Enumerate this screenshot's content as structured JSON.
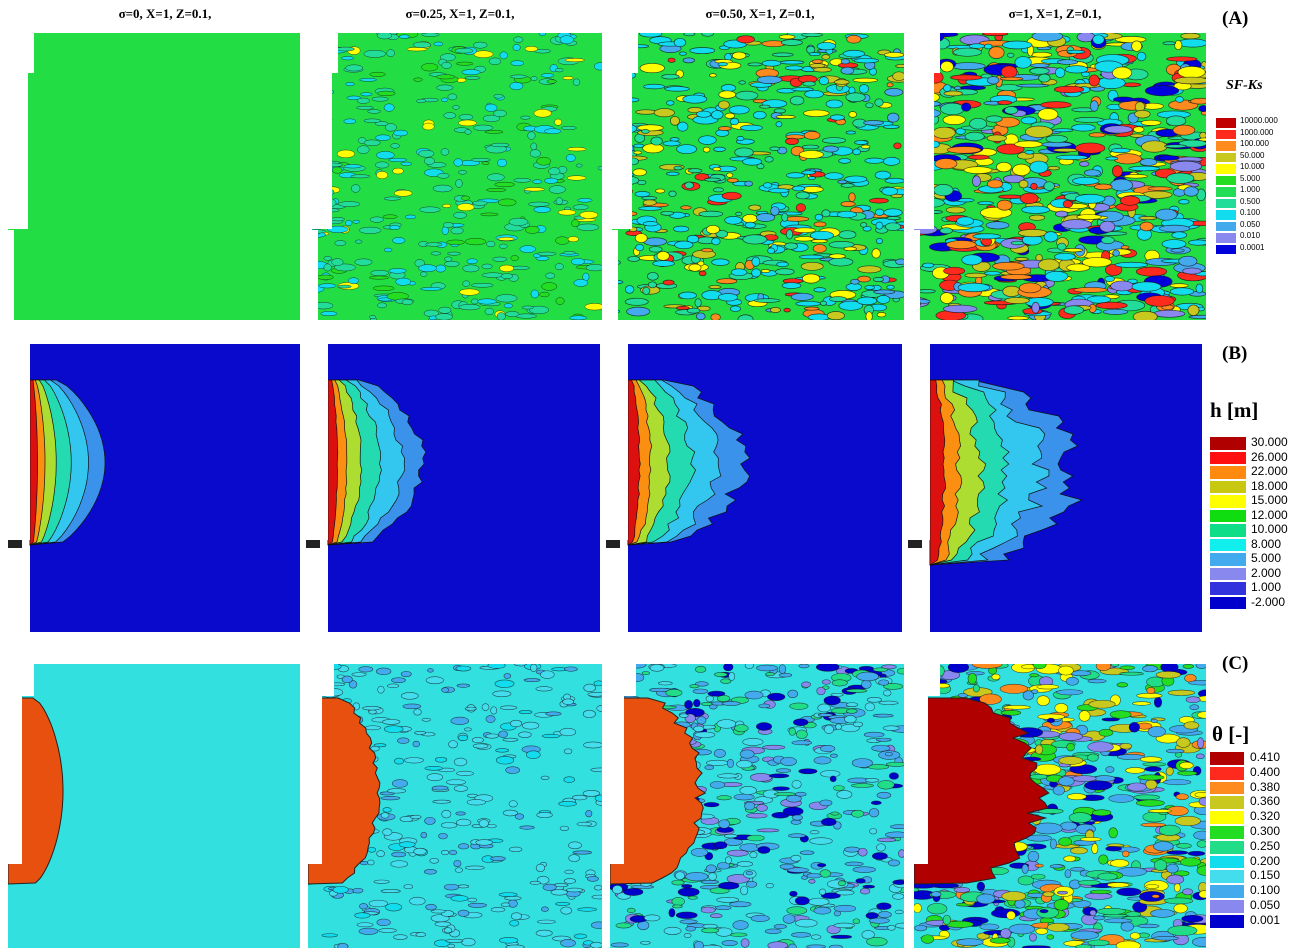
{
  "columns": [
    {
      "label": "σ=0, X=1, Z=0.1,"
    },
    {
      "label": "σ=0.25, X=1, Z=0.1,"
    },
    {
      "label": "σ=0.50, X=1, Z=0.1,"
    },
    {
      "label": "σ=1, X=1, Z=0.1,"
    }
  ],
  "rows": [
    {
      "label": "(A)",
      "legend_title": "SF-Ks",
      "legend": [
        {
          "value": "10000.000",
          "color": "#c00000"
        },
        {
          "value": "1000.000",
          "color": "#ff2a1e"
        },
        {
          "value": "100.000",
          "color": "#ff8a1e"
        },
        {
          "value": "50.000",
          "color": "#c8c81e"
        },
        {
          "value": "10.000",
          "color": "#ffff00"
        },
        {
          "value": "5.000",
          "color": "#22dd22"
        },
        {
          "value": "1.000",
          "color": "#22dd55"
        },
        {
          "value": "0.500",
          "color": "#22dd99"
        },
        {
          "value": "0.100",
          "color": "#11ddee"
        },
        {
          "value": "0.050",
          "color": "#44aaee"
        },
        {
          "value": "0.010",
          "color": "#8888ee"
        },
        {
          "value": "0.0001",
          "color": "#0000dd"
        }
      ]
    },
    {
      "label": "(B)",
      "legend_title": "h [m]",
      "legend": [
        {
          "value": "30.000",
          "color": "#b00000"
        },
        {
          "value": "26.000",
          "color": "#ff1010"
        },
        {
          "value": "22.000",
          "color": "#ff8a10"
        },
        {
          "value": "18.000",
          "color": "#c8c810"
        },
        {
          "value": "15.000",
          "color": "#ffff00"
        },
        {
          "value": "12.000",
          "color": "#10dd10"
        },
        {
          "value": "10.000",
          "color": "#10dd88"
        },
        {
          "value": "8.000",
          "color": "#10eeee"
        },
        {
          "value": "5.000",
          "color": "#44aaee"
        },
        {
          "value": "2.000",
          "color": "#8888ee"
        },
        {
          "value": "1.000",
          "color": "#3333dd"
        },
        {
          "value": "-2.000",
          "color": "#0000cc"
        }
      ]
    },
    {
      "label": "(C)",
      "legend_title": "θ [-]",
      "legend": [
        {
          "value": "0.410",
          "color": "#b00000"
        },
        {
          "value": "0.400",
          "color": "#ff2a1e"
        },
        {
          "value": "0.380",
          "color": "#ff8a1e"
        },
        {
          "value": "0.360",
          "color": "#c8c81e"
        },
        {
          "value": "0.320",
          "color": "#ffff00"
        },
        {
          "value": "0.300",
          "color": "#22dd22"
        },
        {
          "value": "0.250",
          "color": "#22dd88"
        },
        {
          "value": "0.200",
          "color": "#11ddee"
        },
        {
          "value": "0.150",
          "color": "#44ddee"
        },
        {
          "value": "0.100",
          "color": "#44aaee"
        },
        {
          "value": "0.050",
          "color": "#8888ee"
        },
        {
          "value": "0.001",
          "color": "#0000cc"
        }
      ]
    }
  ],
  "colors": {
    "ks_base": "#22dd44",
    "pressure_base": "#0a0acc",
    "theta_base": "#33e0e0",
    "theta_wet": "#e85010",
    "theta_wet_max": "#b00000"
  }
}
